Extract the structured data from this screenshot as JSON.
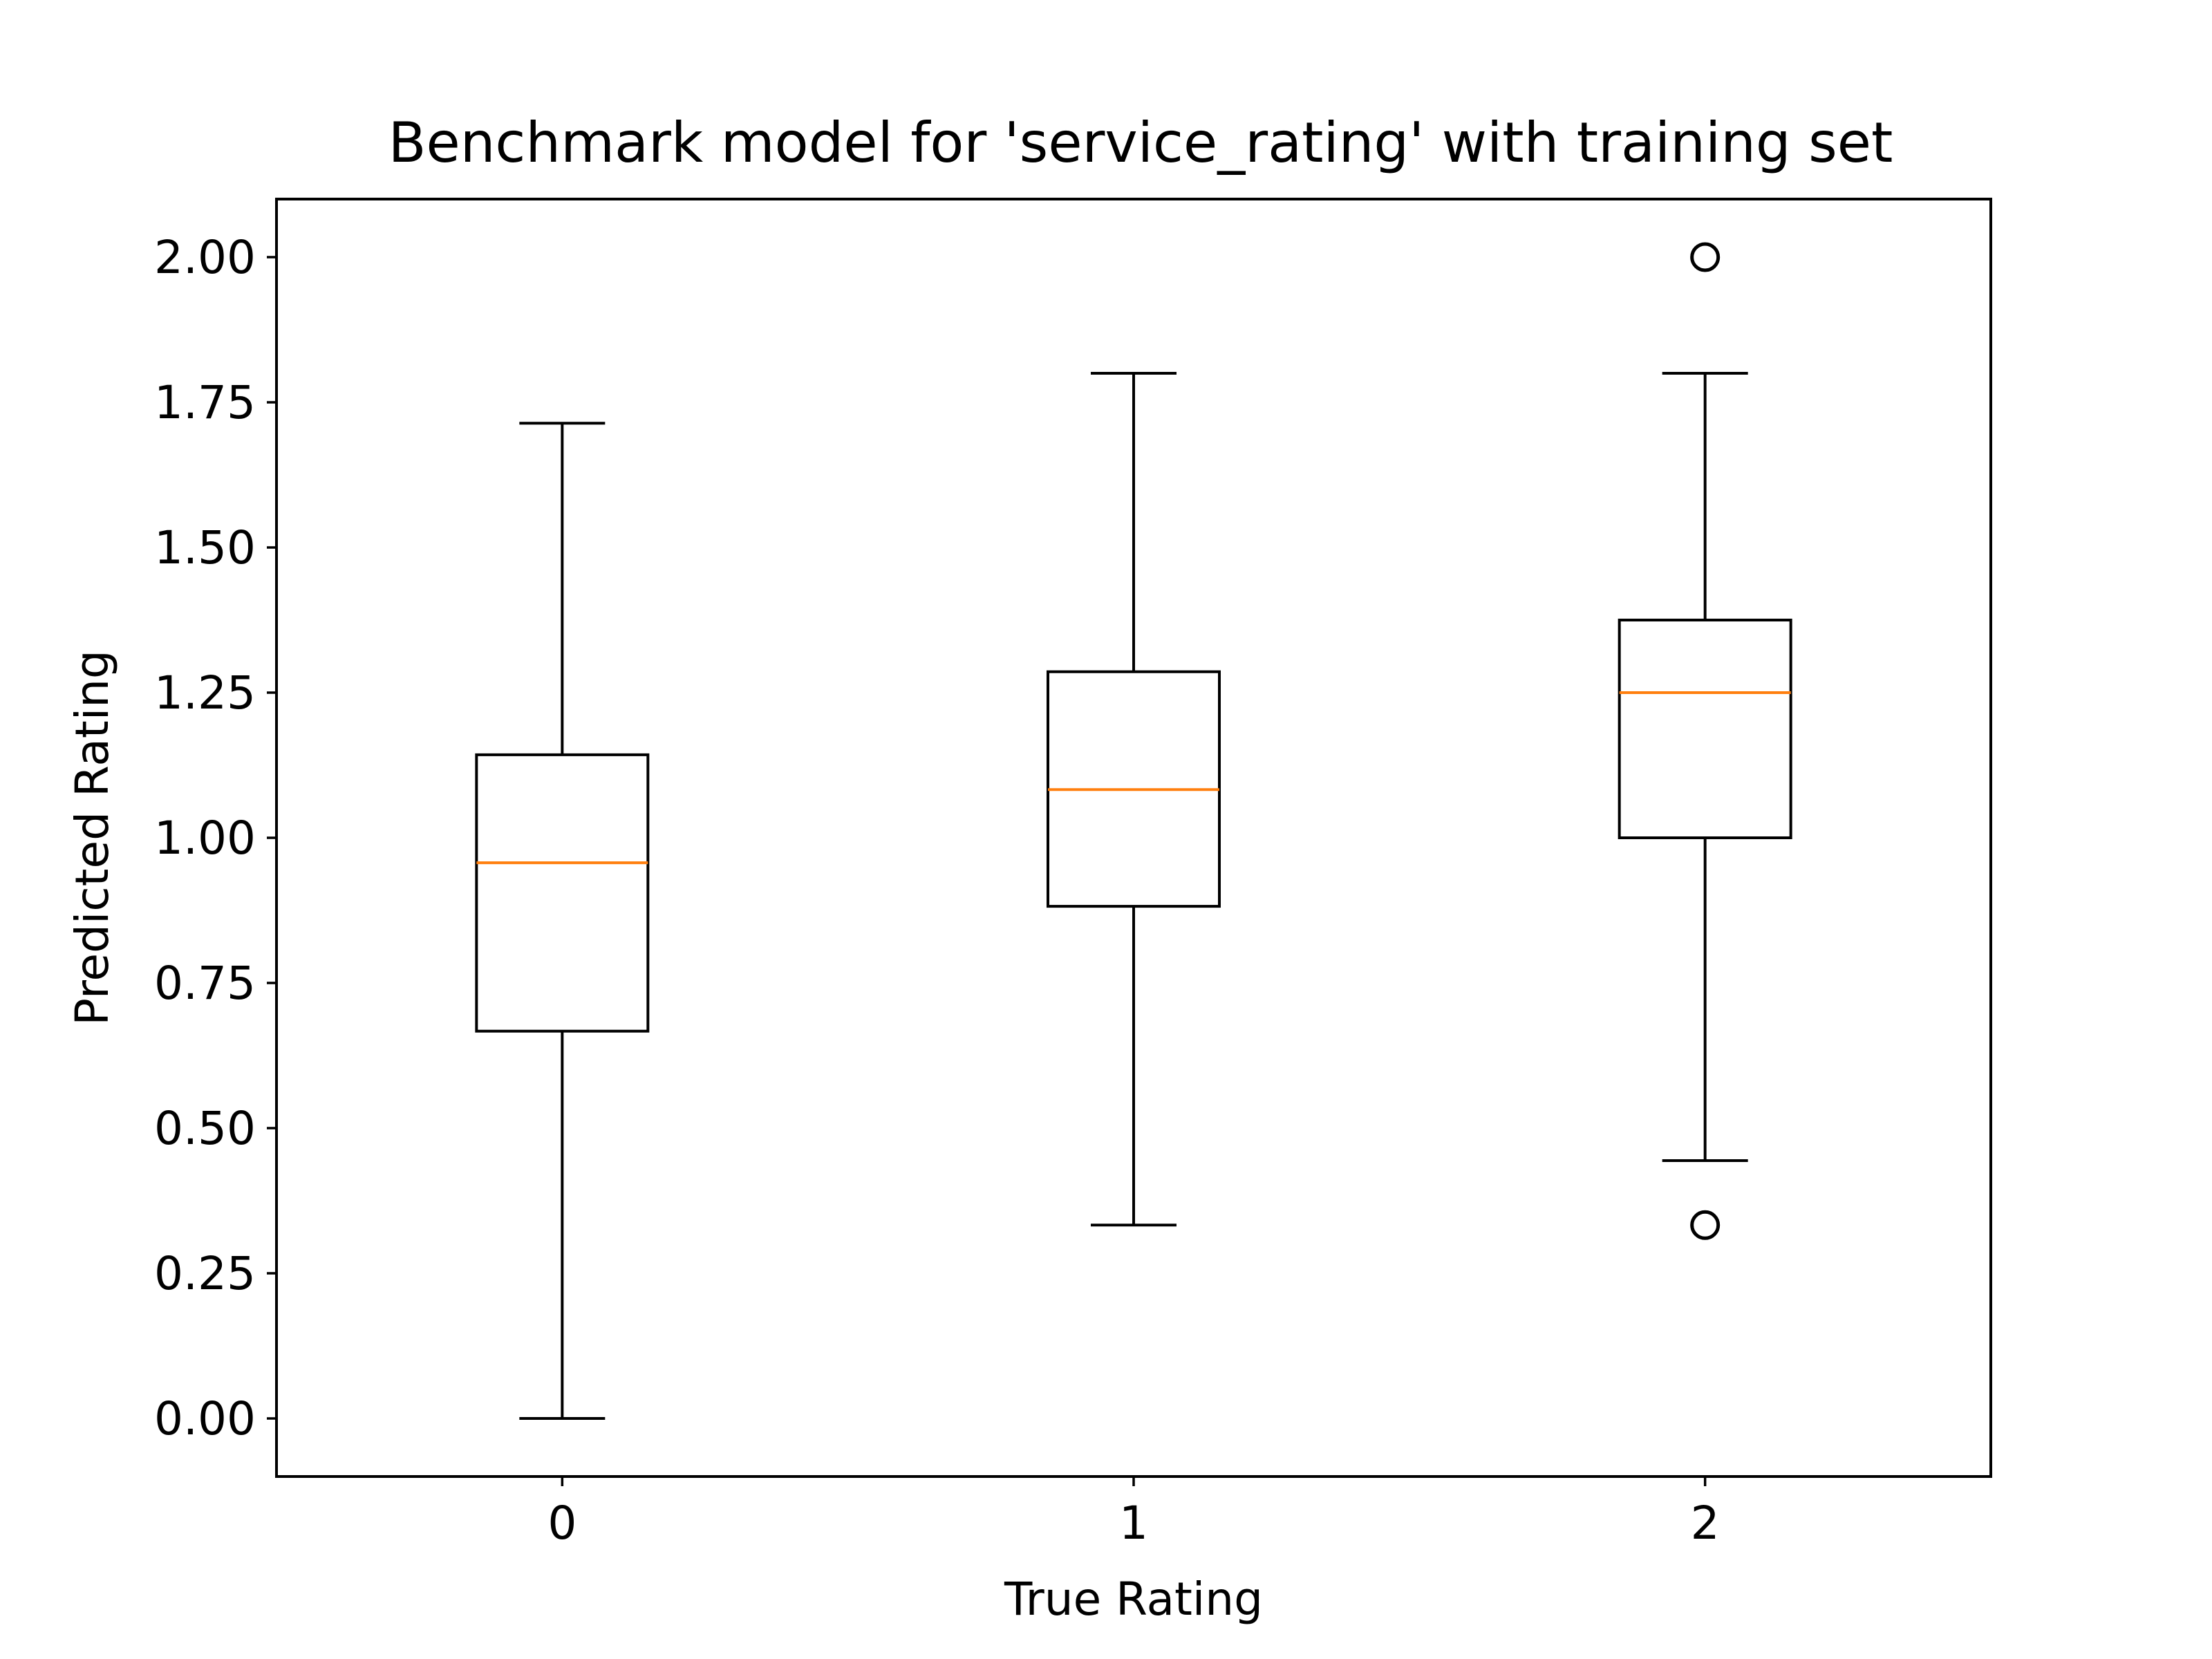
{
  "chart_data": {
    "type": "box",
    "title": "Benchmark model for 'service_rating' with training set",
    "xlabel": "True Rating",
    "ylabel": "Predicted Rating",
    "xlim": [
      -0.5,
      2.5
    ],
    "ylim": [
      -0.1,
      2.1
    ],
    "grid": false,
    "categories": [
      "0",
      "1",
      "2"
    ],
    "x_ticks": [
      "0",
      "1",
      "2"
    ],
    "y_ticks": [
      "0.00",
      "0.25",
      "0.50",
      "0.75",
      "1.00",
      "1.25",
      "1.50",
      "1.75",
      "2.00"
    ],
    "boxes": [
      {
        "category": "0",
        "whisker_low": 0.0,
        "q1": 0.667,
        "median": 0.957,
        "q3": 1.143,
        "whisker_high": 1.714,
        "outliers": []
      },
      {
        "category": "1",
        "whisker_low": 0.333,
        "q1": 0.882,
        "median": 1.083,
        "q3": 1.286,
        "whisker_high": 1.8,
        "outliers": []
      },
      {
        "category": "2",
        "whisker_low": 0.444,
        "q1": 1.0,
        "median": 1.25,
        "q3": 1.375,
        "whisker_high": 1.8,
        "outliers": [
          0.333,
          2.0
        ]
      }
    ],
    "colors": {
      "box": "#000000",
      "median": "#ff7f0e",
      "outlier": "#000000"
    }
  }
}
